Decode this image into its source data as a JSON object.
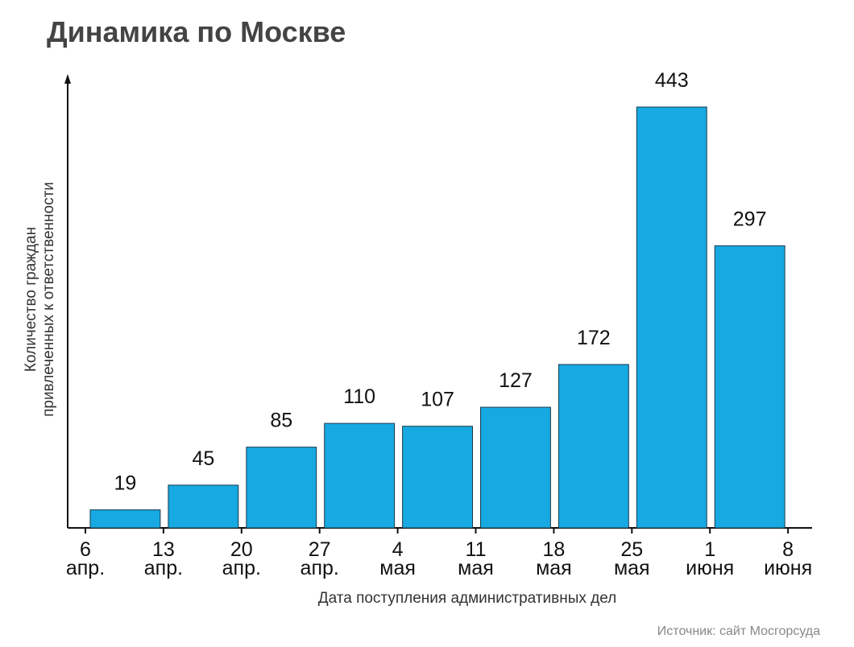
{
  "chart_data": {
    "type": "bar",
    "title": "Динамика по Москве",
    "xlabel": "Дата поступления административных дел",
    "ylabel": [
      "Количество граждан",
      "привлеченных к ответственности"
    ],
    "ticks": [
      {
        "day": "6",
        "month": "апр."
      },
      {
        "day": "13",
        "month": "апр."
      },
      {
        "day": "20",
        "month": "апр."
      },
      {
        "day": "27",
        "month": "апр."
      },
      {
        "day": "4",
        "month": "мая"
      },
      {
        "day": "11",
        "month": "мая"
      },
      {
        "day": "18",
        "month": "мая"
      },
      {
        "day": "25",
        "month": "мая"
      },
      {
        "day": "1",
        "month": "июня"
      },
      {
        "day": "8",
        "month": "июня"
      }
    ],
    "values": [
      19,
      45,
      85,
      110,
      107,
      127,
      172,
      443,
      297
    ],
    "ylim": [
      0,
      470
    ],
    "grid": false,
    "bar_color": "#17a9e1",
    "source": "Источник: сайт Мосгорсуда"
  }
}
